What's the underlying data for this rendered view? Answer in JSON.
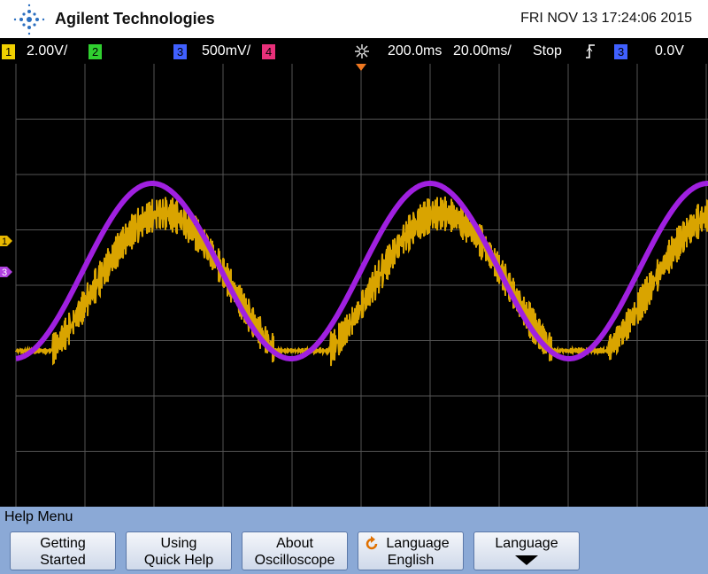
{
  "header": {
    "brand": "Agilent Technologies",
    "datetime": "FRI NOV 13 17:24:06 2015"
  },
  "status": {
    "ch1": "1",
    "ch1_scale": "2.00V/",
    "ch2": "2",
    "ch3": "3",
    "ch3_scale": "500mV/",
    "ch4": "4",
    "delay": "200.0ms",
    "timebase": "20.00ms/",
    "run_state": "Stop",
    "trigger_source": "3",
    "trigger_level": "0.0V"
  },
  "markers": {
    "ch1": "1",
    "ch3": "3"
  },
  "menu": {
    "title": "Help Menu",
    "buttons": [
      [
        "Getting",
        "Started"
      ],
      [
        "Using",
        "Quick Help"
      ],
      [
        "About",
        "Oscilloscope"
      ],
      [
        "Language",
        "English"
      ],
      [
        "Language"
      ]
    ]
  }
}
